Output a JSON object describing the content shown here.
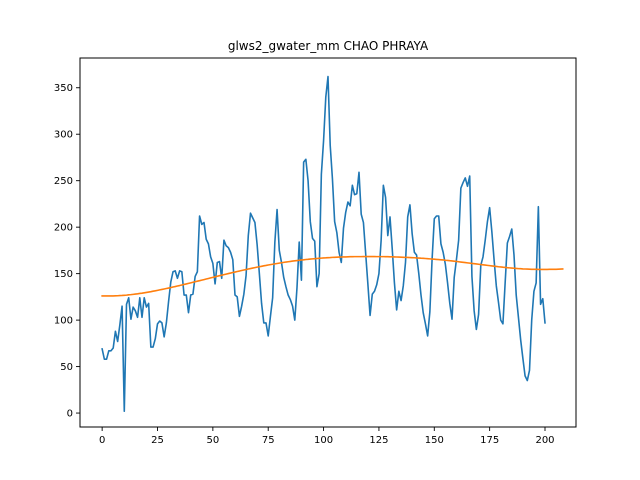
{
  "chart_data": {
    "type": "line",
    "title": "glws2_gwater_mm CHAO PHRAYA",
    "xlabel": "",
    "ylabel": "",
    "xlim": [
      -10,
      214
    ],
    "ylim": [
      -15,
      382
    ],
    "xticks": [
      0,
      25,
      50,
      75,
      100,
      125,
      150,
      175,
      200
    ],
    "yticks": [
      0,
      50,
      100,
      150,
      200,
      250,
      300,
      350
    ],
    "grid": false,
    "colors": {
      "series": "#1f77b4",
      "trend": "#ff7f0e"
    },
    "series": [
      {
        "values": [
          69,
          58,
          58,
          67,
          67,
          70,
          88,
          77,
          95,
          115,
          2,
          117,
          124,
          101,
          114,
          110,
          103,
          124,
          103,
          124,
          114,
          118,
          71,
          71,
          80,
          96,
          99,
          97,
          82,
          97,
          120,
          141,
          152,
          153,
          145,
          153,
          152,
          127,
          127,
          108,
          127,
          128,
          147,
          152,
          212,
          203,
          205,
          187,
          182,
          168,
          161,
          139,
          162,
          163,
          145,
          186,
          180,
          178,
          173,
          165,
          127,
          125,
          104,
          115,
          128,
          148,
          191,
          215,
          210,
          205,
          181,
          150,
          118,
          97,
          97,
          83,
          104,
          124,
          184,
          219,
          175,
          162,
          146,
          136,
          127,
          122,
          115,
          100,
          135,
          184,
          143,
          270,
          273,
          250,
          206,
          188,
          185,
          136,
          150,
          257,
          293,
          340,
          362,
          288,
          252,
          206,
          194,
          173,
          162,
          199,
          216,
          227,
          223,
          245,
          235,
          236,
          259,
          214,
          205,
          172,
          139,
          105,
          128,
          131,
          138,
          150,
          186,
          245,
          232,
          191,
          211,
          177,
          140,
          111,
          131,
          121,
          137,
          162,
          211,
          224,
          193,
          173,
          170,
          150,
          127,
          108,
          96,
          83,
          109,
          165,
          209,
          212,
          212,
          182,
          173,
          160,
          140,
          118,
          101,
          146,
          165,
          186,
          242,
          248,
          253,
          244,
          255,
          147,
          110,
          90,
          106,
          159,
          168,
          186,
          206,
          221,
          195,
          165,
          137,
          119,
          100,
          96,
          140,
          183,
          190,
          198,
          170,
          127,
          103,
          79,
          59,
          40,
          35,
          46,
          100,
          131,
          140,
          222,
          117,
          123,
          97
        ]
      },
      {
        "values": [
          126,
          126,
          126,
          126,
          126,
          126,
          126.1,
          126.2,
          126.4,
          126.5,
          126.7,
          126.9,
          127.2,
          127.4,
          127.7,
          128,
          128.3,
          128.7,
          129,
          129.4,
          129.8,
          130.2,
          130.6,
          131.1,
          131.5,
          132,
          132.5,
          133,
          133.5,
          134,
          134.5,
          135,
          135.6,
          136.1,
          136.7,
          137.2,
          137.8,
          138.4,
          138.9,
          139.5,
          140.1,
          140.7,
          141.3,
          141.9,
          142.4,
          143,
          143.6,
          144.2,
          144.8,
          145.4,
          146,
          146.6,
          147.2,
          147.8,
          148.3,
          148.9,
          149.5,
          150.1,
          150.6,
          151.2,
          151.7,
          152.3,
          152.8,
          153.4,
          153.9,
          154.4,
          155,
          155.5,
          156,
          156.5,
          157,
          157.4,
          157.9,
          158.4,
          158.8,
          159.3,
          159.7,
          160.1,
          160.5,
          160.9,
          161.3,
          161.7,
          162.1,
          162.5,
          162.8,
          163.1,
          163.5,
          163.8,
          164.1,
          164.4,
          164.7,
          164.9,
          165.2,
          165.4,
          165.7,
          165.9,
          166.1,
          166.3,
          166.5,
          166.7,
          166.9,
          167,
          167.2,
          167.3,
          167.5,
          167.6,
          167.7,
          167.8,
          167.9,
          168,
          168,
          168.1,
          168.2,
          168.2,
          168.3,
          168.3,
          168.3,
          168.3,
          168.4,
          168.4,
          168.4,
          168.4,
          168.4,
          168.4,
          168.3,
          168.3,
          168.3,
          168.3,
          168.2,
          168.2,
          168.1,
          168.1,
          168,
          167.9,
          167.8,
          167.7,
          167.6,
          167.5,
          167.4,
          167.3,
          167.2,
          167.1,
          166.9,
          166.8,
          166.6,
          166.5,
          166.3,
          166.1,
          165.9,
          165.7,
          165.5,
          165.3,
          165.1,
          164.9,
          164.7,
          164.4,
          164.2,
          163.9,
          163.7,
          163.4,
          163.1,
          162.8,
          162.5,
          162.2,
          161.9,
          161.6,
          161.3,
          161,
          160.7,
          160.4,
          160.1,
          159.8,
          159.5,
          159.2,
          158.9,
          158.6,
          158.3,
          158,
          157.7,
          157.4,
          157.2,
          156.9,
          156.7,
          156.4,
          156.2,
          156,
          155.8,
          155.6,
          155.4,
          155.3,
          155.1,
          155,
          154.9,
          154.8,
          154.7,
          154.6,
          154.6,
          154.5,
          154.5,
          154.5,
          154.5,
          154.5,
          154.6,
          154.6,
          154.7,
          154.7,
          154.8,
          154.9,
          155
        ]
      }
    ]
  }
}
